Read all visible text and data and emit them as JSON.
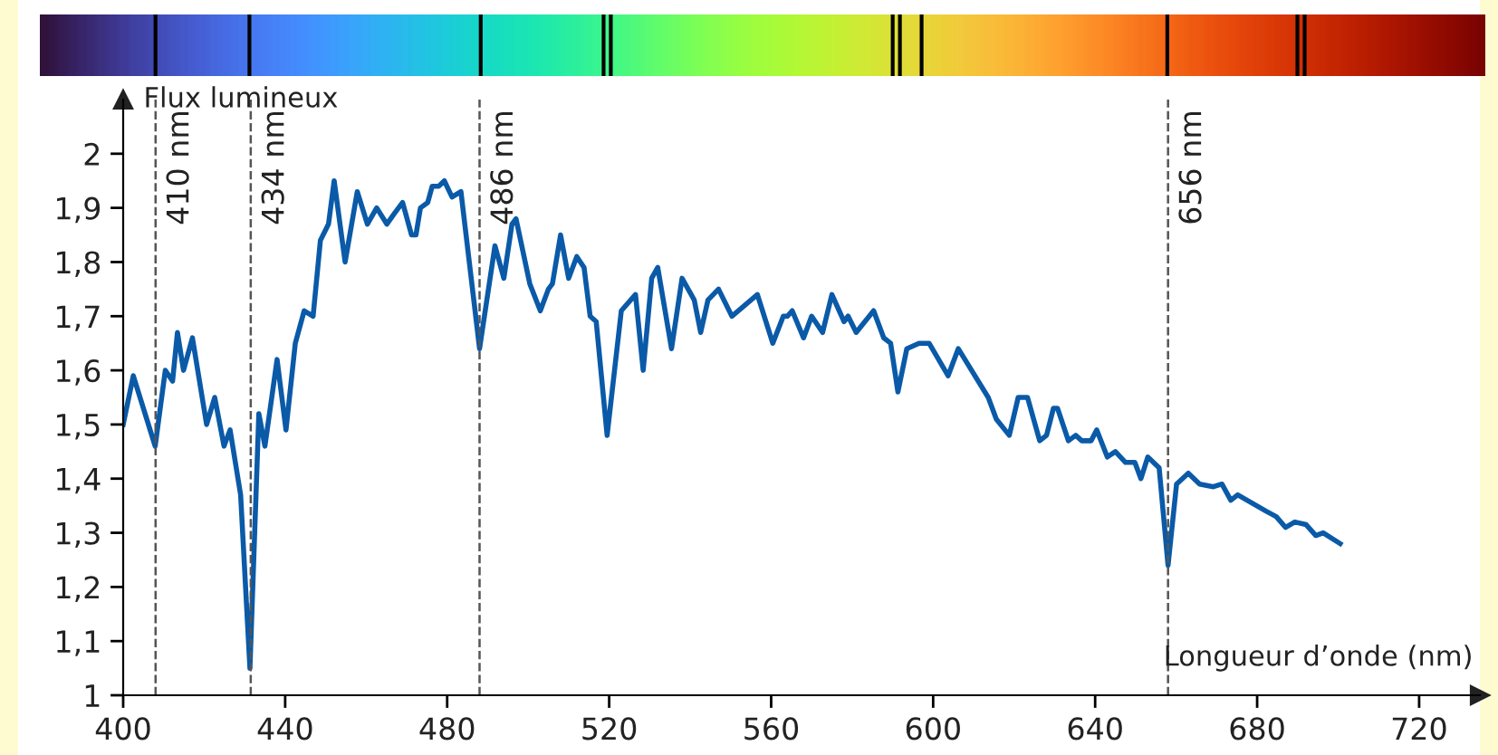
{
  "chart_data": {
    "type": "line",
    "xlabel": "Longueur d’onde (nm)",
    "ylabel": "Flux lumineux",
    "xlim": [
      400,
      735
    ],
    "ylim": [
      1,
      2.1
    ],
    "xticks": [
      400,
      440,
      480,
      520,
      560,
      600,
      640,
      680,
      720
    ],
    "yticks": [
      1,
      {
        "value": 1.1,
        "label": "1,1"
      },
      {
        "value": 1.2,
        "label": "1,2"
      },
      {
        "value": 1.3,
        "label": "1,3"
      },
      {
        "value": 1.4,
        "label": "1,4"
      },
      {
        "value": 1.5,
        "label": "1,5"
      },
      {
        "value": 1.6,
        "label": "1,6"
      },
      {
        "value": 1.7,
        "label": "1,7"
      },
      {
        "value": 1.8,
        "label": "1,8"
      },
      {
        "value": 1.9,
        "label": "1,9"
      },
      2
    ],
    "grid": false,
    "ref_lines": [
      {
        "axis": "x",
        "value": 408,
        "label": "410 nm",
        "color": "#555555",
        "line_style": "dashed"
      },
      {
        "axis": "x",
        "value": 431.5,
        "label": "434 nm",
        "color": "#555555",
        "line_style": "dashed"
      },
      {
        "axis": "x",
        "value": 488,
        "label": "486 nm",
        "color": "#555555",
        "line_style": "dashed"
      },
      {
        "axis": "x",
        "value": 658,
        "label": "656 nm",
        "color": "#555555",
        "line_style": "dashed"
      }
    ],
    "series": [
      {
        "color": "#0a5aa8",
        "x": [
          400,
          402.5,
          407.9,
          410.4,
          412.2,
          413.4,
          414.9,
          417.1,
          420.6,
          422.6,
          424.9,
          426.4,
          429,
          431.3,
          433.5,
          435,
          438,
          440.2,
          442.5,
          444.7,
          446.9,
          448.7,
          450.7,
          452.1,
          454.8,
          457.8,
          460.3,
          462.6,
          465.1,
          467,
          469,
          471.2,
          472.3,
          473.4,
          475.2,
          476.3,
          477.9,
          479.3,
          481.2,
          483.4,
          488,
          491.8,
          494,
          496,
          497,
          500.4,
          503,
          505,
          506,
          508,
          510,
          512,
          513.8,
          515.3,
          516.8,
          519.5,
          523,
          526.5,
          528.4,
          530.5,
          532,
          535.4,
          538,
          541,
          542.6,
          544.4,
          547,
          550.3,
          556.6,
          560.4,
          563,
          564,
          565.2,
          568,
          570,
          572.7,
          575,
          578,
          579,
          581,
          585.3,
          587.8,
          589.5,
          591.3,
          593.5,
          596.5,
          599,
          603.7,
          606.2,
          613.6,
          615.6,
          618.8,
          621,
          623.3,
          626.3,
          628,
          629.7,
          630.7,
          633.4,
          635.2,
          636.7,
          639,
          640.4,
          643,
          645,
          647.5,
          649.8,
          651.3,
          653,
          655.8,
          658,
          660.1,
          663,
          665.8,
          669.2,
          671.3,
          673.5,
          675.2,
          682.2,
          684.7,
          687,
          689.3,
          692.1,
          694.5,
          696.3,
          700.5
        ],
        "values": [
          1.5,
          1.59,
          1.46,
          1.6,
          1.58,
          1.67,
          1.6,
          1.66,
          1.5,
          1.55,
          1.46,
          1.49,
          1.37,
          1.05,
          1.52,
          1.46,
          1.62,
          1.49,
          1.65,
          1.71,
          1.7,
          1.84,
          1.87,
          1.95,
          1.8,
          1.93,
          1.87,
          1.9,
          1.87,
          1.89,
          1.91,
          1.85,
          1.85,
          1.9,
          1.91,
          1.94,
          1.94,
          1.95,
          1.92,
          1.93,
          1.64,
          1.83,
          1.77,
          1.87,
          1.88,
          1.76,
          1.71,
          1.75,
          1.76,
          1.85,
          1.77,
          1.81,
          1.79,
          1.7,
          1.69,
          1.48,
          1.71,
          1.74,
          1.6,
          1.77,
          1.79,
          1.64,
          1.77,
          1.73,
          1.67,
          1.73,
          1.75,
          1.7,
          1.74,
          1.65,
          1.7,
          1.7,
          1.71,
          1.66,
          1.7,
          1.67,
          1.74,
          1.69,
          1.7,
          1.67,
          1.71,
          1.66,
          1.65,
          1.56,
          1.64,
          1.65,
          1.65,
          1.59,
          1.64,
          1.55,
          1.51,
          1.48,
          1.55,
          1.55,
          1.47,
          1.48,
          1.53,
          1.53,
          1.47,
          1.48,
          1.47,
          1.47,
          1.49,
          1.44,
          1.45,
          1.43,
          1.43,
          1.4,
          1.44,
          1.42,
          1.24,
          1.39,
          1.41,
          1.39,
          1.385,
          1.39,
          1.36,
          1.37,
          1.34,
          1.33,
          1.31,
          1.32,
          1.315,
          1.295,
          1.3,
          1.28
        ]
      }
    ]
  }
}
